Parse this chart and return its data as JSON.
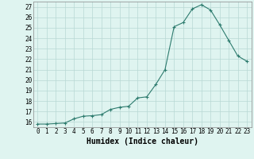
{
  "x": [
    0,
    1,
    2,
    3,
    4,
    5,
    6,
    7,
    8,
    9,
    10,
    11,
    12,
    13,
    14,
    15,
    16,
    17,
    18,
    19,
    20,
    21,
    22,
    23
  ],
  "y": [
    15.8,
    15.8,
    15.85,
    15.9,
    16.3,
    16.55,
    16.6,
    16.7,
    17.2,
    17.4,
    17.5,
    18.3,
    18.4,
    19.6,
    21.0,
    25.1,
    25.5,
    26.8,
    27.2,
    26.7,
    25.3,
    23.8,
    22.3,
    21.8
  ],
  "xlabel": "Humidex (Indice chaleur)",
  "xlim": [
    -0.5,
    23.5
  ],
  "ylim": [
    15.5,
    27.5
  ],
  "yticks": [
    16,
    17,
    18,
    19,
    20,
    21,
    22,
    23,
    24,
    25,
    26,
    27
  ],
  "xticks": [
    0,
    1,
    2,
    3,
    4,
    5,
    6,
    7,
    8,
    9,
    10,
    11,
    12,
    13,
    14,
    15,
    16,
    17,
    18,
    19,
    20,
    21,
    22,
    23
  ],
  "line_color": "#2d7b6e",
  "marker_size": 2.0,
  "bg_color": "#dff4f0",
  "grid_color": "#b8d8d4",
  "tick_fontsize": 5.5,
  "label_fontsize": 7.0
}
